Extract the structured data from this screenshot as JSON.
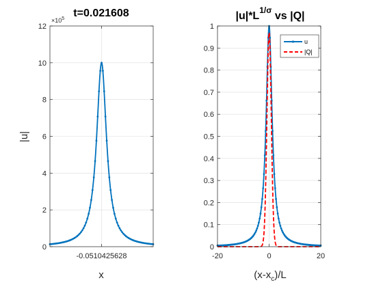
{
  "colors": {
    "u_line": "#0072BD",
    "q_line": "#FF0000",
    "grid": "#DCDCDC",
    "axis": "#262626",
    "background": "#FFFFFF"
  },
  "chart_data": [
    {
      "type": "line",
      "title": "t=0.021608",
      "xlabel": "x",
      "ylabel": "|u|",
      "y_exponent_text": "×10",
      "y_exponent_power": "5",
      "xlim": [
        -12,
        12
      ],
      "ylim": [
        0,
        12
      ],
      "x_ticks": [
        0
      ],
      "x_tick_labels": [
        "-0.051042562​8"
      ],
      "y_ticks": [
        0,
        2,
        4,
        6,
        8,
        10,
        12
      ],
      "y_tick_labels": [
        "0",
        "2",
        "4",
        "6",
        "8",
        "10",
        "12"
      ],
      "grid": true,
      "series": [
        {
          "name": "",
          "peak": 10.0,
          "half_width": 1.4,
          "marker": "dot"
        }
      ]
    },
    {
      "type": "line",
      "title": "|u|*L",
      "title_superscript": "1/σ",
      "title_suffix": " vs |Q|",
      "xlabel": "(x-x",
      "xlabel_sub": "c",
      "xlabel_suffix": ")/L",
      "ylabel": "",
      "xlim": [
        -20,
        20
      ],
      "ylim": [
        0,
        1
      ],
      "x_ticks": [
        -20,
        0,
        20
      ],
      "x_tick_labels": [
        "-20",
        "0",
        "20"
      ],
      "y_ticks": [
        0,
        0.1,
        0.2,
        0.3,
        0.4,
        0.5,
        0.6,
        0.7,
        0.8,
        0.9,
        1
      ],
      "y_tick_labels": [
        "0",
        "0.1",
        "0.2",
        "0.3",
        "0.4",
        "0.5",
        "0.6",
        "0.7",
        "0.8",
        "0.9",
        "1"
      ],
      "grid": true,
      "legend_position": "top-right",
      "series": [
        {
          "name": "u",
          "peak": 1.0,
          "half_width": 1.4,
          "marker": "dot",
          "style": "solid"
        },
        {
          "name": "|Q|",
          "peak": 0.97,
          "half_width": 0.85,
          "style": "dashed"
        }
      ]
    }
  ]
}
